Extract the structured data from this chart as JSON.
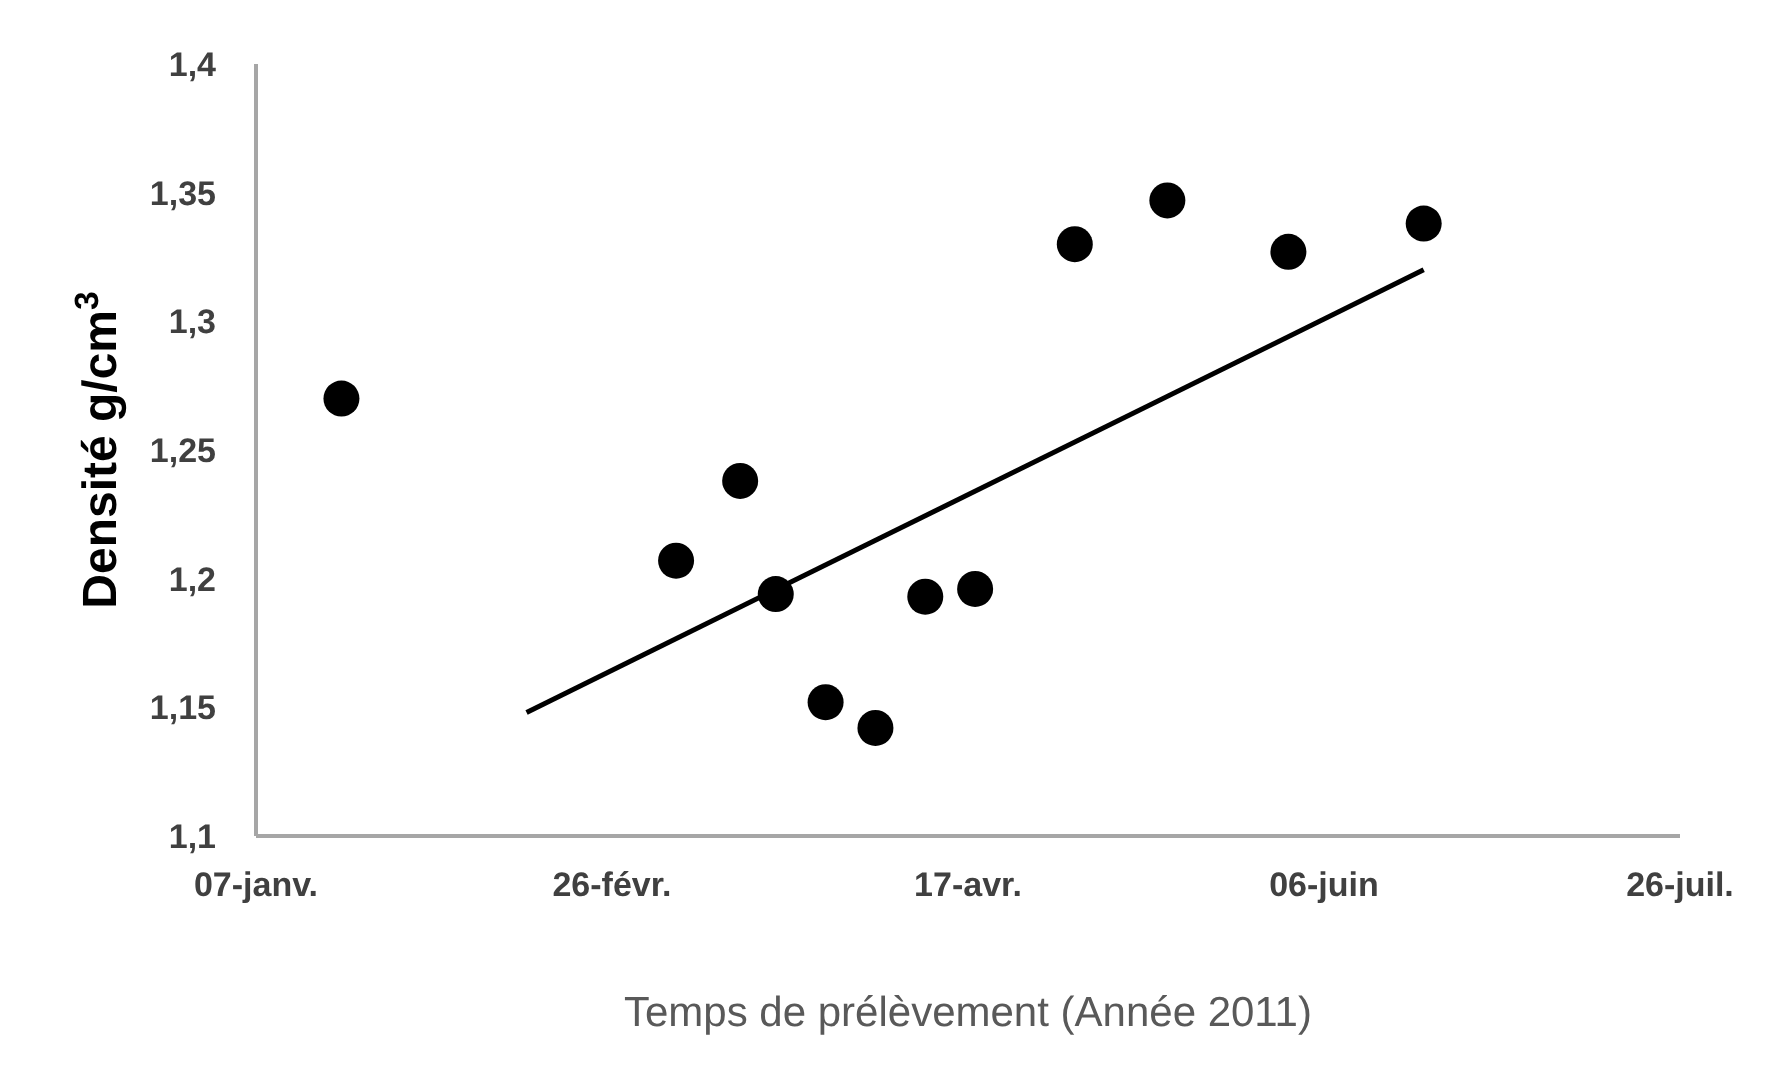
{
  "chart_data": {
    "type": "scatter",
    "xlabel": "Temps de prélèvement (Année 2011)",
    "ylabel": "Densité g/cm$^{3}$",
    "xlim": [
      "2011-01-07",
      "2011-07-26"
    ],
    "xticks": [
      {
        "value": "2011-01-07",
        "label": "07-janv."
      },
      {
        "value": "2011-02-26",
        "label": "26-févr."
      },
      {
        "value": "2011-04-17",
        "label": "17-avr."
      },
      {
        "value": "2011-06-06",
        "label": "06-juin"
      },
      {
        "value": "2011-07-26",
        "label": "26-juil."
      }
    ],
    "ylim": [
      1.1,
      1.4
    ],
    "yticks": [
      {
        "value": 1.1,
        "label": "1,1"
      },
      {
        "value": 1.15,
        "label": "1,15"
      },
      {
        "value": 1.2,
        "label": "1,2"
      },
      {
        "value": 1.25,
        "label": "1,25"
      },
      {
        "value": 1.3,
        "label": "1,3"
      },
      {
        "value": 1.35,
        "label": "1,35"
      },
      {
        "value": 1.4,
        "label": "1,4"
      }
    ],
    "grid": false,
    "series": [
      {
        "marker": "circle",
        "color": "#000000",
        "x": [
          "2011-01-19",
          "2011-03-07",
          "2011-03-16",
          "2011-03-21",
          "2011-03-28",
          "2011-04-04",
          "2011-04-11",
          "2011-04-18",
          "2011-05-02",
          "2011-05-15",
          "2011-06-01",
          "2011-06-20"
        ],
        "values": [
          1.27,
          1.207,
          1.238,
          1.194,
          1.152,
          1.142,
          1.193,
          1.196,
          1.33,
          1.347,
          1.327,
          1.338
        ]
      },
      {
        "type": "line",
        "color": "#000000",
        "line_style": "solid",
        "x": [
          "2011-02-14",
          "2011-06-20"
        ],
        "values": [
          1.148,
          1.32
        ]
      }
    ]
  }
}
